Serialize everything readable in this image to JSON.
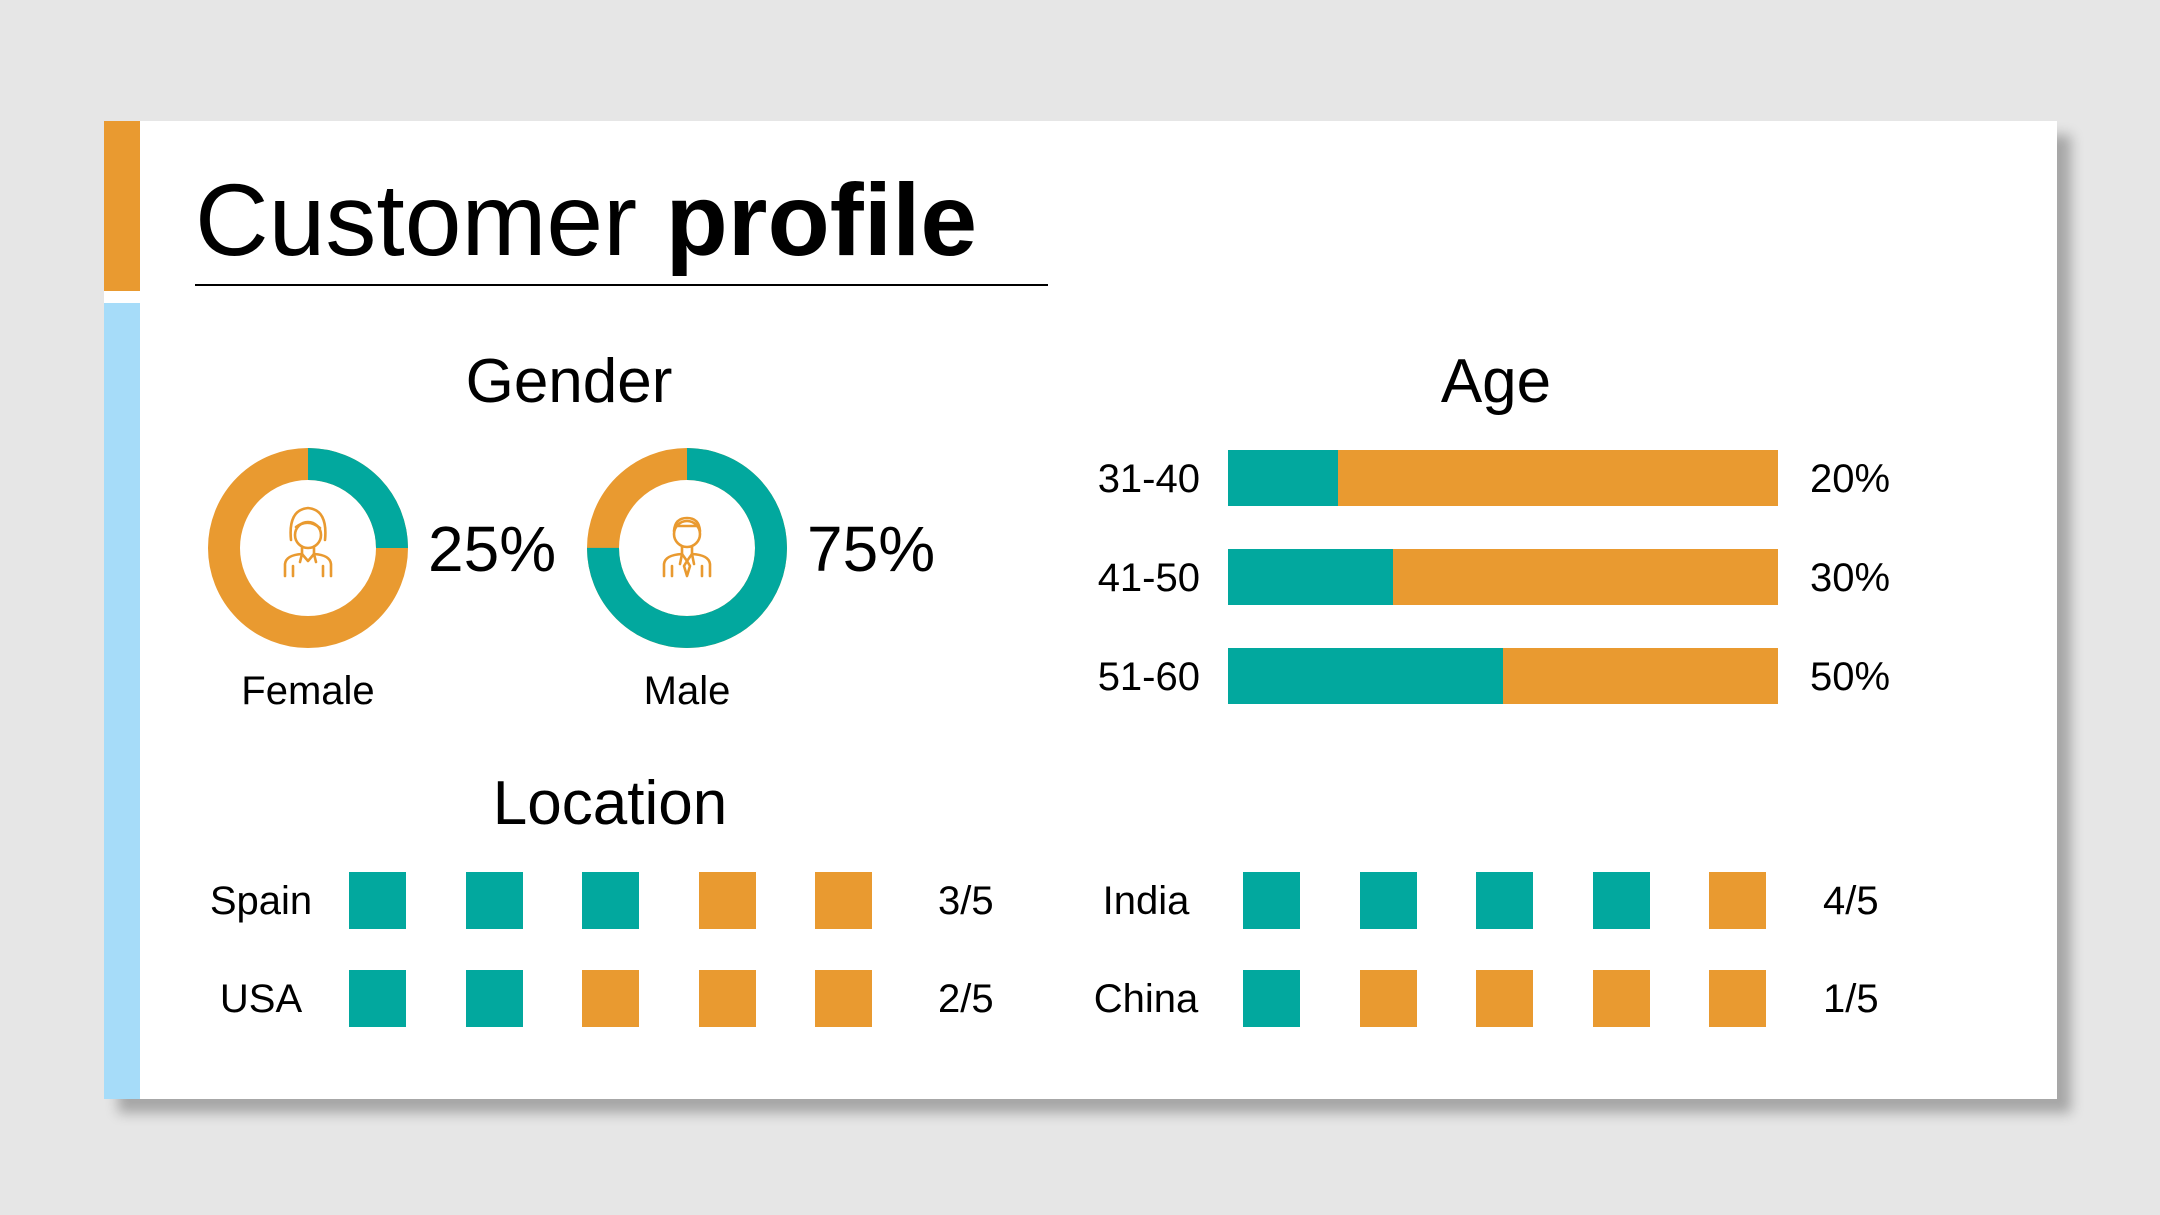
{
  "colors": {
    "teal": "#02a89e",
    "orange": "#e99a30",
    "accent_blue": "#a6dcf9",
    "icon_ring_bg": "#ffffff"
  },
  "title": {
    "regular": "Customer ",
    "bold": "profile"
  },
  "gender": {
    "heading": "Gender",
    "items": [
      {
        "label": "Female",
        "percent_label": "25%",
        "teal_fraction": 0.25,
        "ring_base": "orange",
        "ring_fill": "teal",
        "icon": "female-avatar-icon"
      },
      {
        "label": "Male",
        "percent_label": "75%",
        "teal_fraction": 0.75,
        "ring_base": "orange",
        "ring_fill": "teal",
        "icon": "male-avatar-icon"
      }
    ]
  },
  "age": {
    "heading": "Age",
    "rows": [
      {
        "label": "31-40",
        "percent_label": "20%",
        "value": 20
      },
      {
        "label": "41-50",
        "percent_label": "30%",
        "value": 30
      },
      {
        "label": "51-60",
        "percent_label": "50%",
        "value": 50
      }
    ]
  },
  "location": {
    "heading": "Location",
    "total": 5,
    "rows": [
      {
        "label": "Spain",
        "filled": 3,
        "fraction_label": "3/5"
      },
      {
        "label": "USA",
        "filled": 2,
        "fraction_label": "2/5"
      },
      {
        "label": "India",
        "filled": 4,
        "fraction_label": "4/5"
      },
      {
        "label": "China",
        "filled": 1,
        "fraction_label": "1/5"
      }
    ]
  }
}
